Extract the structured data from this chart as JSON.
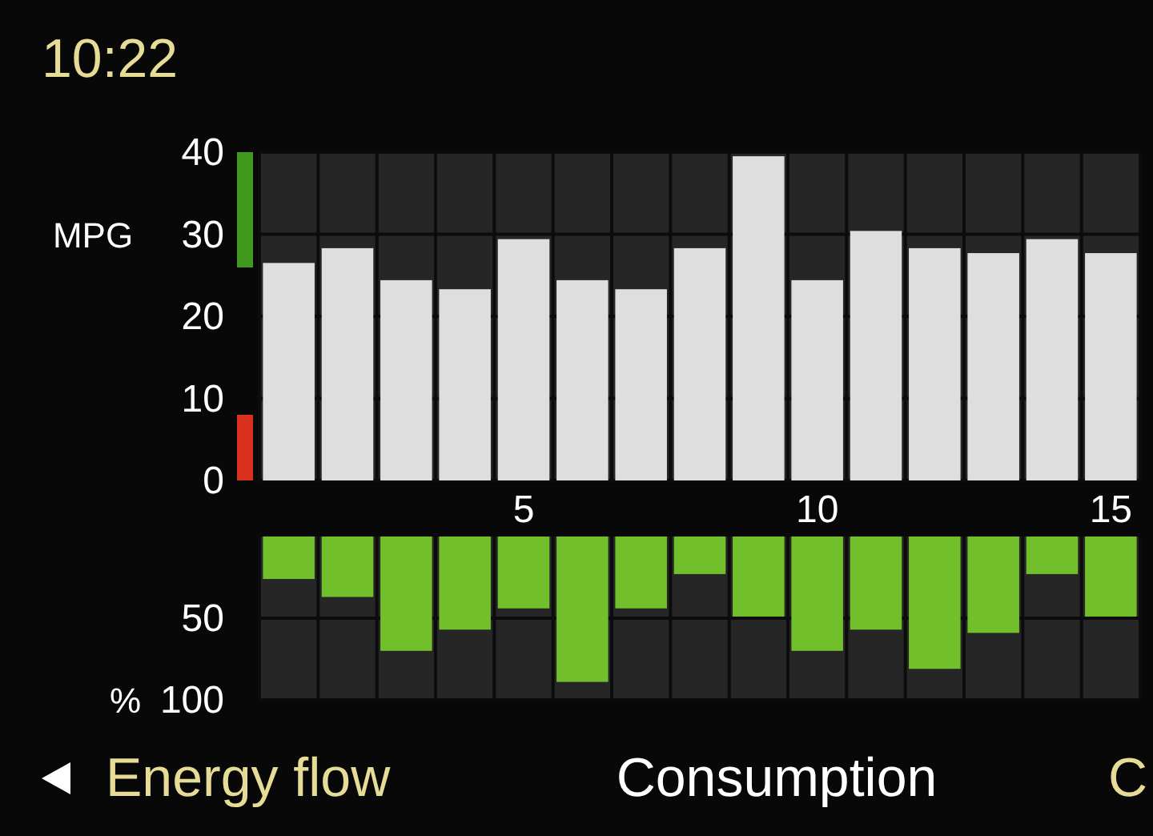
{
  "chart_data": [
    {
      "type": "bar",
      "ylabel": "MPG",
      "categories": [
        null,
        null,
        null,
        null,
        "5",
        null,
        null,
        null,
        null,
        "10",
        null,
        null,
        null,
        null,
        "15"
      ],
      "values": [
        26.5,
        28.3,
        24.4,
        23.3,
        29.4,
        24.4,
        23.3,
        28.3,
        39.5,
        24.4,
        30.4,
        28.3,
        27.7,
        29.4,
        27.7
      ],
      "color": "#dedede",
      "ylim": [
        0,
        40
      ],
      "yticks": [
        0,
        10,
        20,
        30,
        40
      ],
      "grid": true,
      "annotations": [
        "10:22",
        "Energy flow",
        "Consumption",
        "C"
      ]
    },
    {
      "type": "bar",
      "ylabel": "%",
      "categories": [
        null,
        null,
        null,
        null,
        null,
        null,
        null,
        null,
        null,
        null,
        null,
        null,
        null,
        null,
        null
      ],
      "values": [
        26,
        37,
        70,
        57,
        44,
        89,
        44,
        23,
        49,
        70,
        57,
        81,
        59,
        23,
        49
      ],
      "color": "#72bf2c",
      "ylim": [
        100,
        0
      ],
      "yticks": [
        50,
        100
      ],
      "grid": true,
      "tick_labels": "y"
    }
  ]
}
